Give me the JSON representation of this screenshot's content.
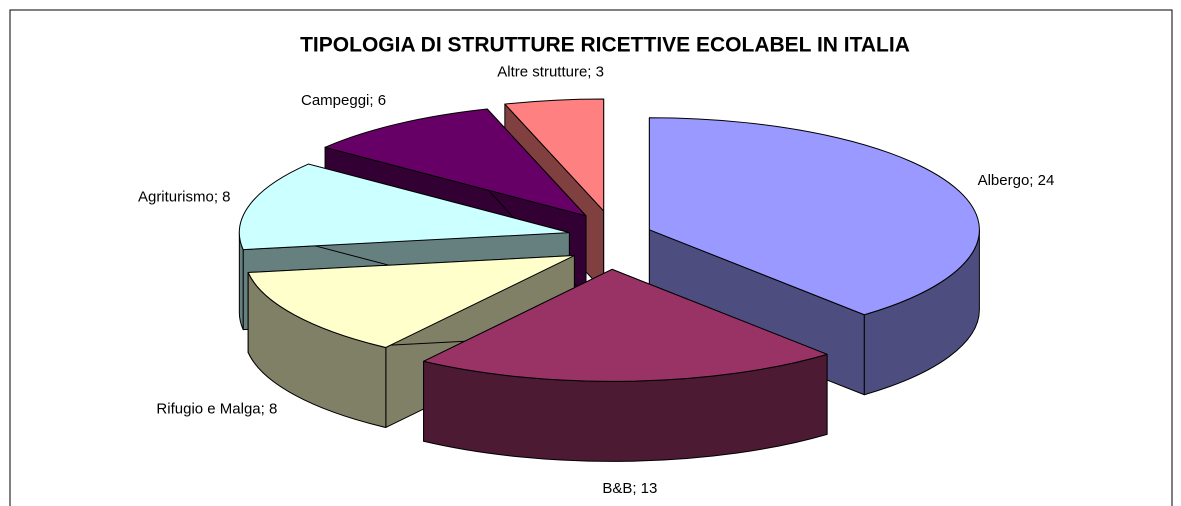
{
  "chart_data": {
    "type": "pie3d",
    "title": "TIPOLOGIA DI STRUTTURE RICETTIVE ECOLABEL IN ITALIA",
    "values": [
      24,
      13,
      8,
      8,
      6,
      3
    ],
    "value_labels": [
      "Albergo; 24",
      "B&B; 13",
      "Rifugio e Malga; 8",
      "Agriturismo; 8",
      "Campeggi; 6",
      "Altre strutture; 3"
    ],
    "colors": [
      "#9999ff",
      "#993366",
      "#ffffcc",
      "#ccffff",
      "#660066",
      "#ff8080"
    ]
  }
}
